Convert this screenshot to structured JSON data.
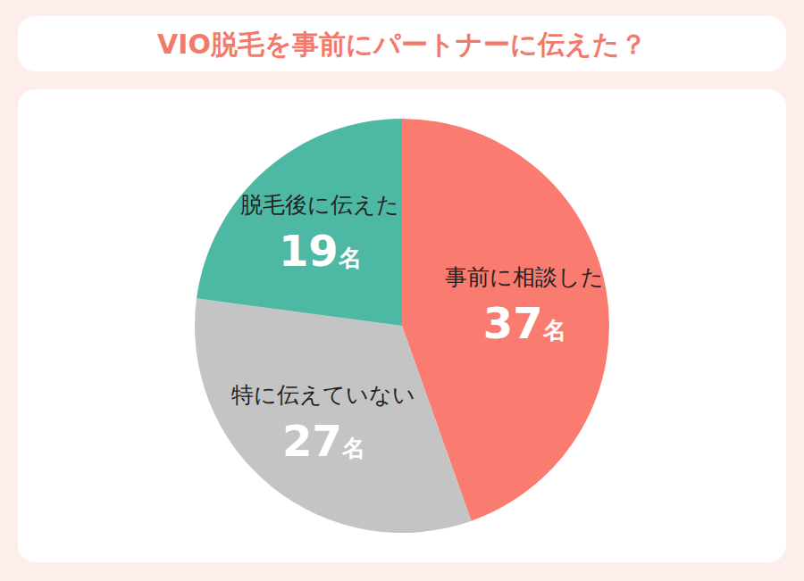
{
  "chart_data": {
    "type": "pie",
    "title": "VIO脱毛を事前にパートナーに伝えた？",
    "categories": [
      "事前に相談した",
      "特に伝えていない",
      "脱毛後に伝えた"
    ],
    "values": [
      37,
      27,
      19
    ],
    "value_labels": [
      "37名",
      "27名",
      "19名"
    ],
    "colors": [
      "#fa7b70",
      "#c4c4c4",
      "#4db8a3"
    ],
    "data_labels": true
  }
}
